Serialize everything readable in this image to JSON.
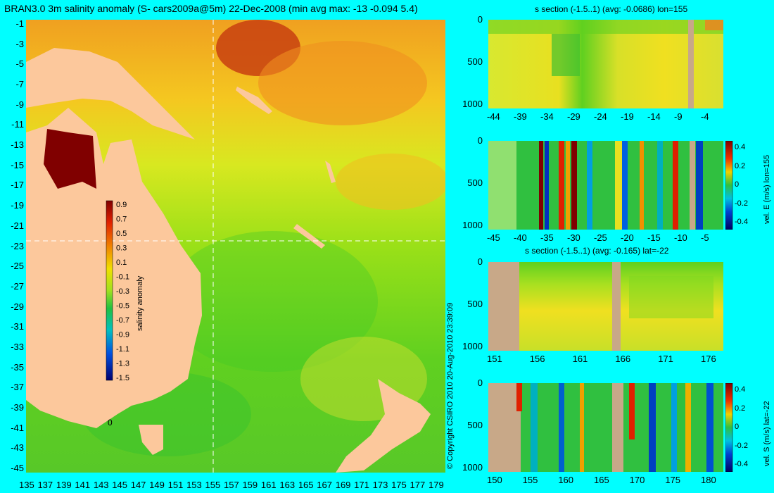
{
  "main_title": "BRAN3.0 3m salinity anomaly (S- cars2009a@5m) 22-Dec-2008 (min avg max: -13 -0.094 5.4)",
  "copyright": "© Copyright CSIRO 2010   20-Aug-2010 23:39:09",
  "map": {
    "lon_ticks": [
      "135",
      "137",
      "139",
      "141",
      "143",
      "145",
      "147",
      "149",
      "151",
      "153",
      "155",
      "157",
      "159",
      "161",
      "163",
      "165",
      "167",
      "169",
      "171",
      "173",
      "175",
      "177",
      "179"
    ],
    "lat_ticks": [
      "-1",
      "-3",
      "-5",
      "-7",
      "-9",
      "-11",
      "-13",
      "-15",
      "-17",
      "-19",
      "-21",
      "-23",
      "-25",
      "-27",
      "-29",
      "-31",
      "-33",
      "-35",
      "-37",
      "-39",
      "-41",
      "-43",
      "-45"
    ],
    "inset_label": "0",
    "colorbar": {
      "label": "salinity anomaly",
      "ticks": [
        "0.9",
        "0.7",
        "0.5",
        "0.3",
        "0.1",
        "-0.1",
        "-0.3",
        "-0.5",
        "-0.7",
        "-0.9",
        "-1.1",
        "-1.3",
        "-1.5"
      ]
    }
  },
  "colors": {
    "background": "#00ffff",
    "land": "#fcc89c",
    "section_land": "#c8a888"
  },
  "panels": [
    {
      "title": "s section (-1.5..1) (avg: -0.0686) lon=155",
      "x_ticks": [
        "-44",
        "-39",
        "-34",
        "-29",
        "-24",
        "-19",
        "-14",
        "-9",
        "-4"
      ],
      "y_ticks": [
        "0",
        "500",
        "1000"
      ],
      "side_label": "",
      "cb_ticks": []
    },
    {
      "title": "",
      "x_ticks": [
        "-45",
        "-40",
        "-35",
        "-30",
        "-25",
        "-20",
        "-15",
        "-10",
        "-5"
      ],
      "y_ticks": [
        "0",
        "500",
        "1000"
      ],
      "side_label": "vel. E (m/s) lon=155",
      "cb_ticks": [
        "0.4",
        "0.2",
        "0",
        "-0.2",
        "-0.4"
      ]
    },
    {
      "title": "s section (-1.5..1) (avg: -0.165) lat=-22",
      "x_ticks": [
        "151",
        "156",
        "161",
        "166",
        "171",
        "176"
      ],
      "y_ticks": [
        "0",
        "500",
        "1000"
      ],
      "side_label": "",
      "cb_ticks": []
    },
    {
      "title": "",
      "x_ticks": [
        "150",
        "155",
        "160",
        "165",
        "170",
        "175",
        "180"
      ],
      "y_ticks": [
        "0",
        "500",
        "1000"
      ],
      "side_label": "vel. S (m/s) lat=-22",
      "cb_ticks": [
        "0.4",
        "0.2",
        "0",
        "-0.2",
        "-0.4"
      ]
    }
  ],
  "chart_data": [
    {
      "type": "heatmap",
      "title": "BRAN3.0 3m salinity anomaly (S- cars2009a@5m) 22-Dec-2008 (min avg max: -13 -0.094 5.4)",
      "x_range": [
        135,
        180
      ],
      "y_range": [
        -45,
        0
      ],
      "color_range": [
        -1.5,
        1.0
      ],
      "colorbar_label": "salinity anomaly",
      "crosshair": {
        "lon": 155,
        "lat": -22
      }
    },
    {
      "type": "heatmap",
      "title": "s section (-1.5..1) (avg: -0.0686) lon=155",
      "x_range": [
        -45,
        0
      ],
      "depth_range": [
        0,
        1000
      ],
      "color_range": [
        -1.5,
        1.0
      ]
    },
    {
      "type": "heatmap",
      "title": "",
      "x_range": [
        -45,
        0
      ],
      "depth_range": [
        0,
        1000
      ],
      "color_range": [
        -0.4,
        0.4
      ],
      "colorbar_label": "vel. E (m/s) lon=155"
    },
    {
      "type": "heatmap",
      "title": "s section (-1.5..1) (avg: -0.165) lat=-22",
      "x_range": [
        150,
        180
      ],
      "depth_range": [
        0,
        1000
      ],
      "color_range": [
        -1.5,
        1.0
      ]
    },
    {
      "type": "heatmap",
      "title": "",
      "x_range": [
        150,
        180
      ],
      "depth_range": [
        0,
        1000
      ],
      "color_range": [
        -0.4,
        0.4
      ],
      "colorbar_label": "vel. S (m/s) lat=-22"
    }
  ]
}
